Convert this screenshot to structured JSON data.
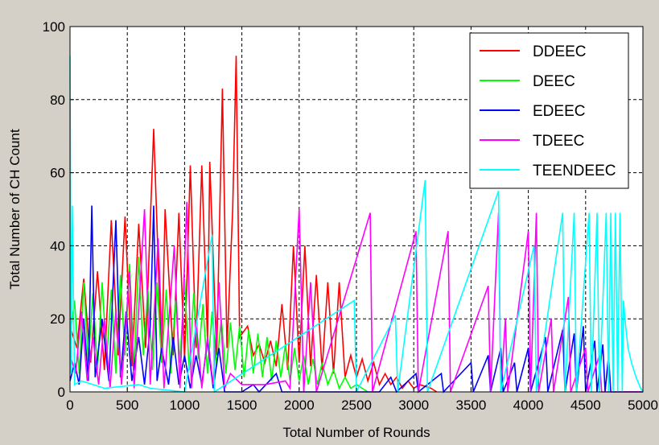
{
  "chart_data": {
    "type": "line",
    "title": "",
    "xlabel": "Total Number of Rounds",
    "ylabel": "Total Number of CH Count",
    "xlim": [
      0,
      5000
    ],
    "ylim": [
      0,
      100
    ],
    "xticks": [
      0,
      500,
      1000,
      1500,
      2000,
      2500,
      3000,
      3500,
      4000,
      4500,
      5000
    ],
    "yticks": [
      0,
      20,
      40,
      60,
      80,
      100
    ],
    "grid": true,
    "legend_position": "top-right",
    "series": [
      {
        "name": "DDEEC",
        "color": "#ff0000",
        "points": [
          [
            0,
            18
          ],
          [
            60,
            12
          ],
          [
            120,
            31
          ],
          [
            180,
            8
          ],
          [
            240,
            33
          ],
          [
            300,
            6
          ],
          [
            360,
            47
          ],
          [
            420,
            10
          ],
          [
            480,
            48
          ],
          [
            540,
            7
          ],
          [
            600,
            46
          ],
          [
            660,
            12
          ],
          [
            730,
            72
          ],
          [
            800,
            8
          ],
          [
            830,
            50
          ],
          [
            900,
            10
          ],
          [
            950,
            49
          ],
          [
            1000,
            9
          ],
          [
            1050,
            62
          ],
          [
            1100,
            12
          ],
          [
            1150,
            62
          ],
          [
            1200,
            14
          ],
          [
            1220,
            63
          ],
          [
            1280,
            10
          ],
          [
            1330,
            83
          ],
          [
            1370,
            12
          ],
          [
            1420,
            50
          ],
          [
            1450,
            92
          ],
          [
            1480,
            15
          ],
          [
            1550,
            18
          ],
          [
            1600,
            10
          ],
          [
            1650,
            13
          ],
          [
            1700,
            8
          ],
          [
            1750,
            14
          ],
          [
            1800,
            7
          ],
          [
            1850,
            24
          ],
          [
            1900,
            6
          ],
          [
            1950,
            40
          ],
          [
            2000,
            8
          ],
          [
            2050,
            40
          ],
          [
            2100,
            7
          ],
          [
            2150,
            32
          ],
          [
            2200,
            6
          ],
          [
            2250,
            30
          ],
          [
            2300,
            5
          ],
          [
            2350,
            30
          ],
          [
            2400,
            4
          ],
          [
            2450,
            10
          ],
          [
            2500,
            4
          ],
          [
            2550,
            9
          ],
          [
            2600,
            3
          ],
          [
            2650,
            8
          ],
          [
            2700,
            2
          ],
          [
            2750,
            5
          ],
          [
            2800,
            2
          ],
          [
            2850,
            4
          ],
          [
            2900,
            1
          ],
          [
            2950,
            3
          ],
          [
            3000,
            1
          ],
          [
            3050,
            2
          ],
          [
            3150,
            1
          ],
          [
            3200,
            0
          ]
        ]
      },
      {
        "name": "DEEC",
        "color": "#00ff00",
        "points": [
          [
            0,
            15
          ],
          [
            40,
            25
          ],
          [
            80,
            5
          ],
          [
            120,
            30
          ],
          [
            160,
            8
          ],
          [
            200,
            27
          ],
          [
            240,
            6
          ],
          [
            280,
            30
          ],
          [
            320,
            9
          ],
          [
            360,
            28
          ],
          [
            400,
            5
          ],
          [
            440,
            32
          ],
          [
            480,
            10
          ],
          [
            520,
            35
          ],
          [
            560,
            6
          ],
          [
            600,
            37
          ],
          [
            640,
            10
          ],
          [
            680,
            28
          ],
          [
            720,
            6
          ],
          [
            760,
            30
          ],
          [
            800,
            8
          ],
          [
            840,
            28
          ],
          [
            880,
            5
          ],
          [
            920,
            25
          ],
          [
            960,
            8
          ],
          [
            1000,
            31
          ],
          [
            1040,
            6
          ],
          [
            1080,
            27
          ],
          [
            1120,
            9
          ],
          [
            1160,
            24
          ],
          [
            1200,
            5
          ],
          [
            1240,
            22
          ],
          [
            1280,
            7
          ],
          [
            1320,
            20
          ],
          [
            1360,
            5
          ],
          [
            1400,
            19
          ],
          [
            1440,
            6
          ],
          [
            1480,
            18
          ],
          [
            1520,
            4
          ],
          [
            1560,
            17
          ],
          [
            1600,
            5
          ],
          [
            1640,
            16
          ],
          [
            1680,
            4
          ],
          [
            1720,
            15
          ],
          [
            1760,
            3
          ],
          [
            1800,
            14
          ],
          [
            1840,
            4
          ],
          [
            1880,
            13
          ],
          [
            1920,
            3
          ],
          [
            1960,
            12
          ],
          [
            2000,
            3
          ],
          [
            2040,
            10
          ],
          [
            2080,
            2
          ],
          [
            2120,
            9
          ],
          [
            2160,
            2
          ],
          [
            2200,
            8
          ],
          [
            2250,
            2
          ],
          [
            2300,
            6
          ],
          [
            2350,
            1
          ],
          [
            2400,
            4
          ],
          [
            2450,
            1
          ],
          [
            2500,
            2
          ],
          [
            2550,
            1
          ],
          [
            2600,
            0
          ]
        ]
      },
      {
        "name": "EDEEC",
        "color": "#0000ff",
        "points": [
          [
            0,
            3
          ],
          [
            40,
            8
          ],
          [
            80,
            2
          ],
          [
            120,
            20
          ],
          [
            160,
            3
          ],
          [
            190,
            51
          ],
          [
            220,
            4
          ],
          [
            280,
            20
          ],
          [
            340,
            3
          ],
          [
            400,
            47
          ],
          [
            440,
            4
          ],
          [
            490,
            22
          ],
          [
            540,
            3
          ],
          [
            600,
            15
          ],
          [
            650,
            2
          ],
          [
            700,
            18
          ],
          [
            730,
            51
          ],
          [
            760,
            3
          ],
          [
            800,
            12
          ],
          [
            860,
            2
          ],
          [
            900,
            15
          ],
          [
            950,
            2
          ],
          [
            1000,
            10
          ],
          [
            1050,
            1
          ],
          [
            1100,
            10
          ],
          [
            1150,
            2
          ],
          [
            1200,
            14
          ],
          [
            1250,
            1
          ],
          [
            1300,
            12
          ],
          [
            1350,
            0
          ],
          [
            1500,
            0
          ],
          [
            1600,
            2
          ],
          [
            1650,
            0
          ],
          [
            1800,
            5
          ],
          [
            1850,
            0
          ],
          [
            2000,
            0
          ],
          [
            2700,
            0
          ],
          [
            2800,
            4
          ],
          [
            2850,
            0
          ],
          [
            3020,
            5
          ],
          [
            3040,
            0
          ],
          [
            3240,
            5
          ],
          [
            3260,
            0
          ],
          [
            3500,
            8
          ],
          [
            3520,
            0
          ],
          [
            3650,
            10
          ],
          [
            3670,
            0
          ],
          [
            3760,
            12
          ],
          [
            3780,
            0
          ],
          [
            3880,
            8
          ],
          [
            3900,
            0
          ],
          [
            4000,
            12
          ],
          [
            4020,
            0
          ],
          [
            4150,
            15
          ],
          [
            4170,
            0
          ],
          [
            4300,
            17
          ],
          [
            4320,
            0
          ],
          [
            4400,
            16
          ],
          [
            4420,
            0
          ],
          [
            4480,
            18
          ],
          [
            4500,
            0
          ],
          [
            4580,
            14
          ],
          [
            4600,
            0
          ],
          [
            4650,
            13
          ],
          [
            4670,
            0
          ],
          [
            4700,
            10
          ],
          [
            4720,
            0
          ],
          [
            5000,
            0
          ]
        ]
      },
      {
        "name": "TDEEC",
        "color": "#ff00ff",
        "points": [
          [
            0,
            10
          ],
          [
            50,
            5
          ],
          [
            100,
            22
          ],
          [
            150,
            3
          ],
          [
            200,
            15
          ],
          [
            250,
            2
          ],
          [
            300,
            20
          ],
          [
            350,
            1
          ],
          [
            400,
            22
          ],
          [
            450,
            2
          ],
          [
            520,
            33
          ],
          [
            560,
            1
          ],
          [
            650,
            50
          ],
          [
            700,
            2
          ],
          [
            770,
            42
          ],
          [
            820,
            1
          ],
          [
            910,
            40
          ],
          [
            960,
            1
          ],
          [
            1020,
            52
          ],
          [
            1060,
            1
          ],
          [
            1100,
            20
          ],
          [
            1150,
            1
          ],
          [
            1200,
            15
          ],
          [
            1250,
            2
          ],
          [
            1300,
            30
          ],
          [
            1350,
            1
          ],
          [
            1400,
            5
          ],
          [
            1500,
            2
          ],
          [
            1700,
            2
          ],
          [
            1880,
            3
          ],
          [
            1920,
            1
          ],
          [
            2000,
            50
          ],
          [
            2040,
            0
          ],
          [
            2100,
            30
          ],
          [
            2150,
            0
          ],
          [
            2620,
            49
          ],
          [
            2640,
            0
          ],
          [
            3020,
            44
          ],
          [
            3040,
            0
          ],
          [
            3300,
            44
          ],
          [
            3320,
            0
          ],
          [
            3650,
            29
          ],
          [
            3670,
            0
          ],
          [
            3740,
            49
          ],
          [
            3760,
            0
          ],
          [
            3800,
            20
          ],
          [
            3820,
            0
          ],
          [
            4000,
            44
          ],
          [
            4020,
            0
          ],
          [
            4070,
            49
          ],
          [
            4090,
            0
          ],
          [
            4200,
            20
          ],
          [
            4220,
            0
          ],
          [
            4350,
            26
          ],
          [
            4370,
            0
          ],
          [
            4500,
            12
          ],
          [
            4520,
            0
          ],
          [
            4620,
            10
          ],
          [
            4640,
            0
          ],
          [
            5000,
            0
          ]
        ]
      },
      {
        "name": "TEENDEEC",
        "color": "#00ffff",
        "points": [
          [
            0,
            92
          ],
          [
            10,
            5
          ],
          [
            20,
            51
          ],
          [
            40,
            2
          ],
          [
            100,
            3
          ],
          [
            200,
            2
          ],
          [
            300,
            1
          ],
          [
            600,
            2
          ],
          [
            700,
            1
          ],
          [
            1000,
            0
          ],
          [
            1240,
            43
          ],
          [
            1260,
            0
          ],
          [
            2480,
            25
          ],
          [
            2500,
            0
          ],
          [
            2840,
            21
          ],
          [
            2860,
            0
          ],
          [
            3100,
            58
          ],
          [
            3120,
            0
          ],
          [
            3740,
            55
          ],
          [
            3760,
            0
          ],
          [
            4050,
            40
          ],
          [
            4070,
            0
          ],
          [
            4300,
            49
          ],
          [
            4320,
            0
          ],
          [
            4400,
            49
          ],
          [
            4420,
            0
          ],
          [
            4530,
            49
          ],
          [
            4550,
            0
          ],
          [
            4600,
            49
          ],
          [
            4620,
            0
          ],
          [
            4680,
            49
          ],
          [
            4700,
            0
          ],
          [
            4720,
            49
          ],
          [
            4740,
            0
          ],
          [
            4760,
            49
          ],
          [
            4780,
            0
          ],
          [
            4800,
            49
          ],
          [
            4820,
            0
          ],
          [
            4830,
            25
          ],
          [
            4850,
            18
          ],
          [
            4870,
            12
          ],
          [
            4900,
            8
          ],
          [
            4940,
            4
          ],
          [
            4980,
            1
          ],
          [
            5000,
            0
          ]
        ]
      }
    ]
  }
}
